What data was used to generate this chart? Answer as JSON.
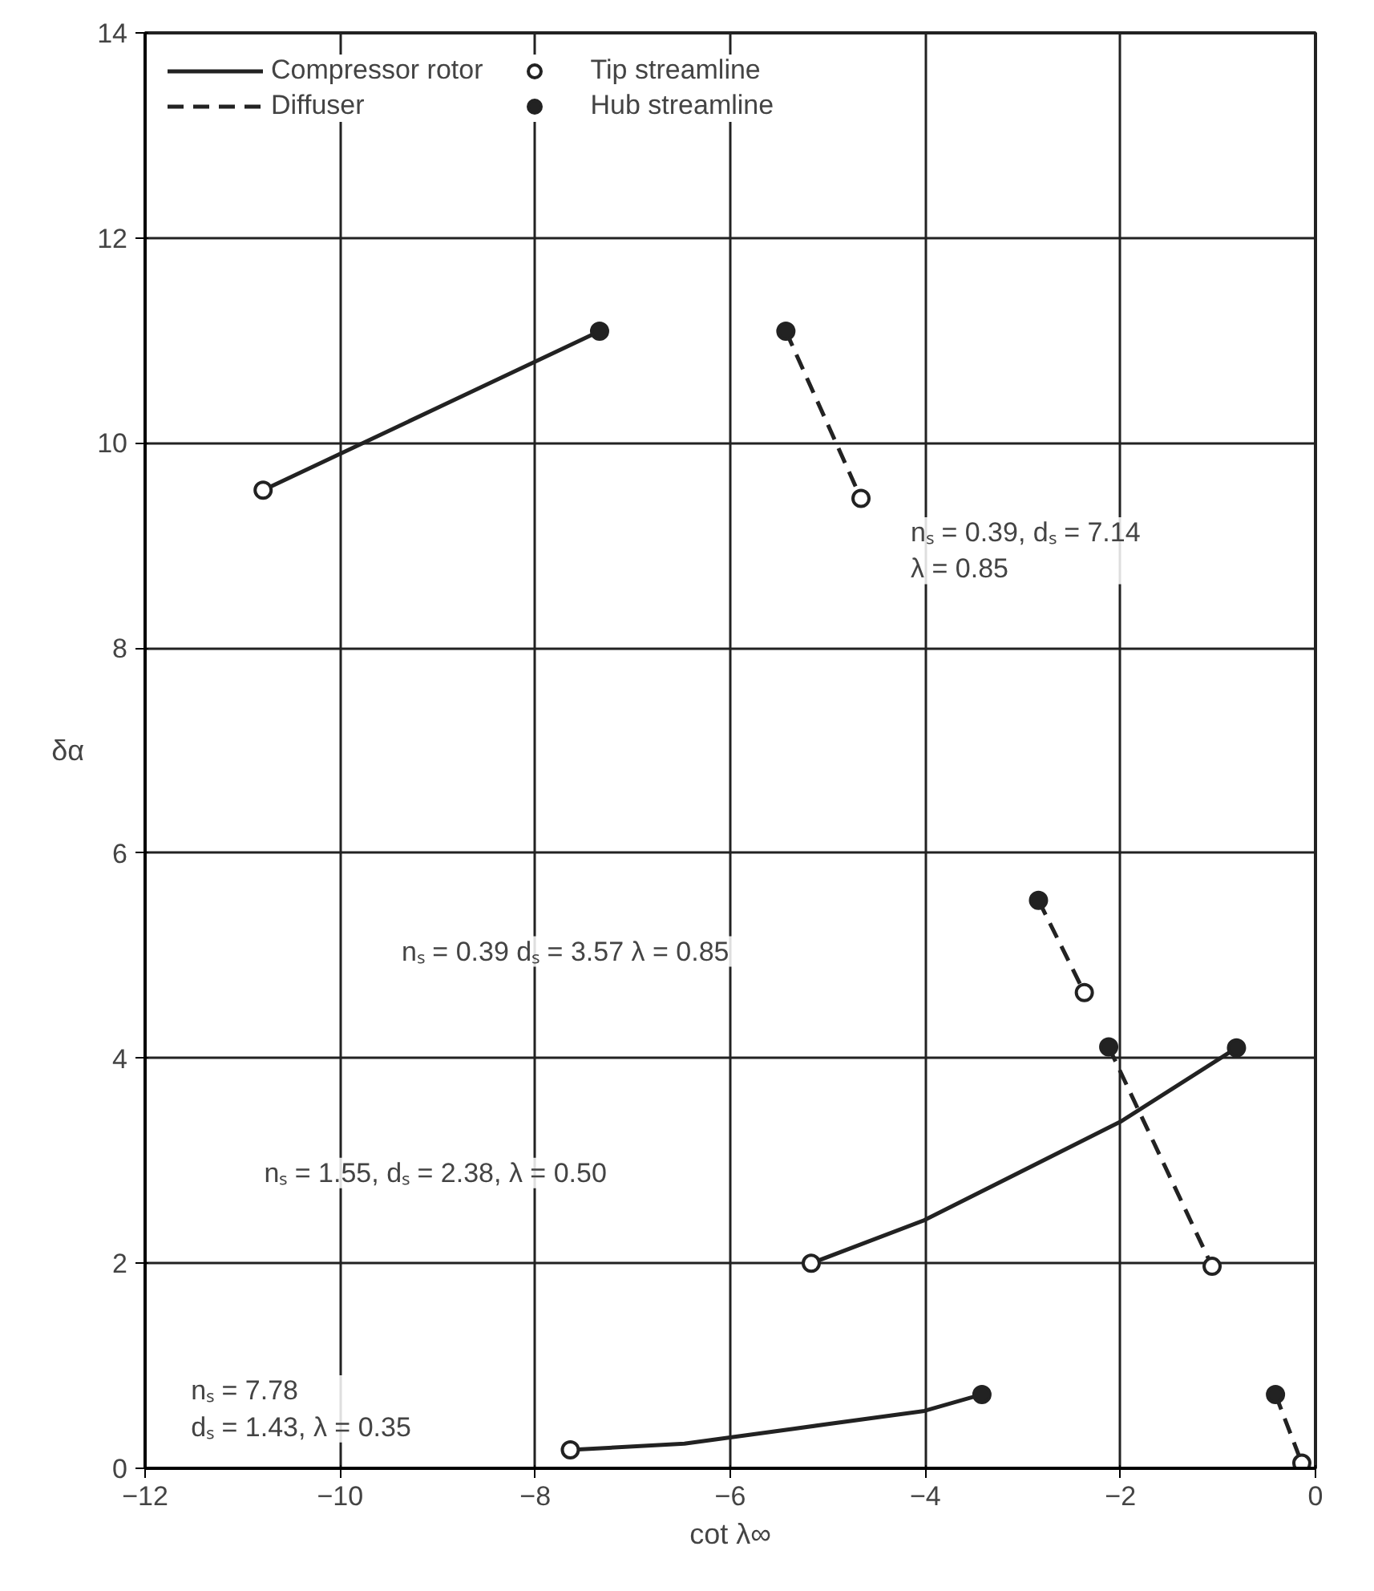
{
  "chart_data": {
    "type": "line",
    "xlabel": "cot λ∞",
    "ylabel": "δα",
    "xlim": [
      -12,
      0
    ],
    "ylim": [
      0,
      14
    ],
    "xticks": [
      -12,
      -10,
      -8,
      -6,
      -4,
      -2,
      0
    ],
    "yticks": [
      0,
      2,
      4,
      6,
      8,
      10,
      12,
      14
    ],
    "grid": true,
    "legend": "top left",
    "series": [
      {
        "name": "Compressor rotor",
        "line_style": "solid",
        "marker": "none",
        "color": "#222222",
        "x": [
          -10.79,
          -7.34,
          null,
          -5.17,
          -4.01,
          -2.0,
          -0.81,
          null,
          -7.64,
          -6.47,
          -4.01,
          -3.42
        ],
        "values": [
          9.54,
          11.09,
          null,
          2.0,
          2.42,
          3.38,
          4.1,
          null,
          0.18,
          0.24,
          0.56,
          0.72
        ]
      },
      {
        "name": "Diffuser",
        "line_style": "dashed",
        "marker": "none",
        "color": "#222222",
        "x": [
          -5.43,
          -4.66,
          null,
          -2.84,
          -2.37,
          null,
          -2.12,
          -1.06,
          null,
          -0.41,
          -0.14
        ],
        "values": [
          11.09,
          9.46,
          null,
          5.54,
          4.64,
          null,
          4.11,
          1.97,
          null,
          0.72,
          0.05
        ]
      },
      {
        "name": "Tip streamline",
        "type": "scatter",
        "marker": "circle",
        "color": "#ffffff",
        "x": [
          -10.79,
          -4.66,
          -2.37,
          -5.17,
          -1.06,
          -7.64,
          -0.14
        ],
        "values": [
          9.54,
          9.46,
          4.64,
          2.0,
          1.97,
          0.18,
          0.05
        ]
      },
      {
        "name": "Hub streamline",
        "type": "scatter",
        "marker": "circle",
        "color": "#222222",
        "x": [
          -7.34,
          -5.43,
          -2.84,
          -0.81,
          -2.12,
          -3.42,
          -0.41
        ],
        "values": [
          11.09,
          11.09,
          5.54,
          4.1,
          4.11,
          0.72,
          0.72
        ]
      }
    ],
    "annotations": [
      "nₛ = 0.39, dₛ = 7.14\nλ = 0.85",
      "nₛ = 0.39    dₛ = 3.57    λ = 0.85",
      "nₛ = 1.55, dₛ = 2.38, λ = 0.50",
      "nₛ = 7.78\ndₛ = 1.43, λ = 0.35"
    ]
  }
}
